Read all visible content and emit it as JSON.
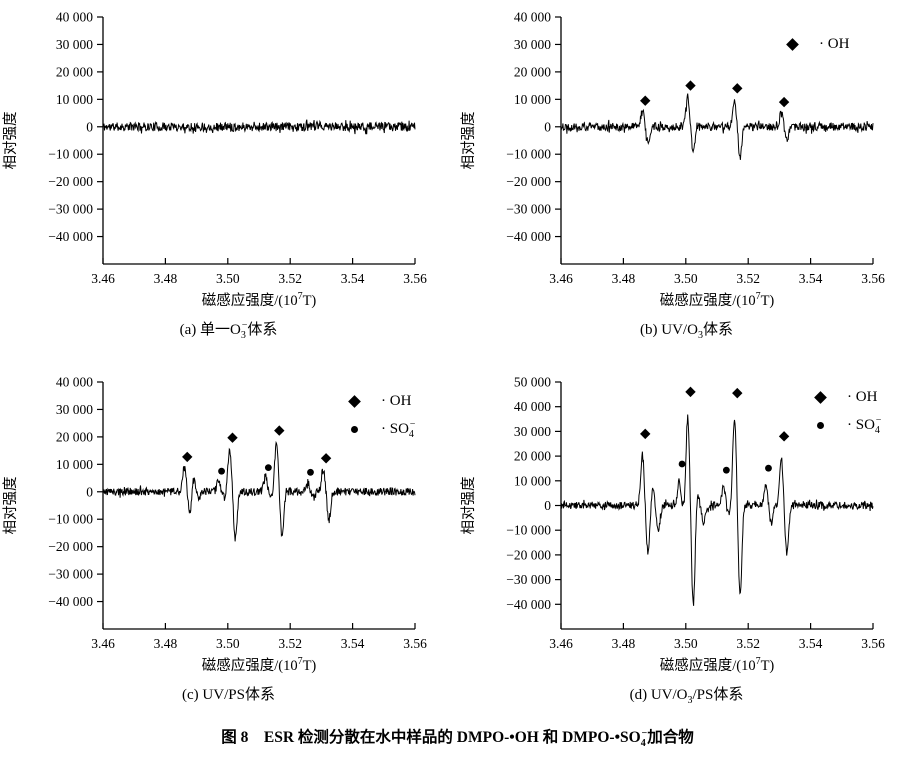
{
  "figure": {
    "caption": {
      "pre": "图 8　ESR 检测分散在水中样品的 DMPO-•OH 和 DMPO-•SO",
      "sub": "4",
      "sup": "−",
      "post": "加合物"
    }
  },
  "chart_data": [
    {
      "id": "a",
      "type": "line",
      "caption": {
        "pre": "(a) 单一O",
        "sub": "3",
        "sup": "−",
        "post": "体系"
      },
      "xlabel": {
        "pre": "磁感应强度/(10",
        "sup": "7",
        "post": "T)"
      },
      "ylabel": "相对强度",
      "xlim": [
        3.46,
        3.56
      ],
      "xticks": [
        "3.46",
        "3.48",
        "3.50",
        "3.52",
        "3.54",
        "3.56"
      ],
      "ylim": [
        -50000,
        40000
      ],
      "yticks": [
        {
          "v": 40000,
          "label": "40 000"
        },
        {
          "v": 30000,
          "label": "30 000"
        },
        {
          "v": 20000,
          "label": "20 000"
        },
        {
          "v": 10000,
          "label": "10 000"
        },
        {
          "v": 0,
          "label": "0"
        },
        {
          "v": -10000,
          "label": "−10 000"
        },
        {
          "v": -20000,
          "label": "−20 000"
        },
        {
          "v": -30000,
          "label": "−30 000"
        },
        {
          "v": -40000,
          "label": "−40 000"
        }
      ],
      "noise_amplitude": 1600,
      "seed": 11,
      "peaks": [],
      "legend": []
    },
    {
      "id": "b",
      "type": "line",
      "caption": {
        "pre": "(b) UV/O",
        "sub": "3",
        "post": "体系"
      },
      "xlabel": {
        "pre": "磁感应强度/(10",
        "sup": "7",
        "post": "T)"
      },
      "ylabel": "相对强度",
      "xlim": [
        3.46,
        3.56
      ],
      "xticks": [
        "3.46",
        "3.48",
        "3.50",
        "3.52",
        "3.54",
        "3.56"
      ],
      "ylim": [
        -50000,
        40000
      ],
      "yticks": [
        {
          "v": 40000,
          "label": "40 000"
        },
        {
          "v": 30000,
          "label": "30 000"
        },
        {
          "v": 20000,
          "label": "20 000"
        },
        {
          "v": 10000,
          "label": "10 000"
        },
        {
          "v": 0,
          "label": "0"
        },
        {
          "v": -10000,
          "label": "−10 000"
        },
        {
          "v": -20000,
          "label": "−20 000"
        },
        {
          "v": -30000,
          "label": "−30 000"
        },
        {
          "v": -40000,
          "label": "−40 000"
        }
      ],
      "noise_amplitude": 1500,
      "seed": 22,
      "peaks": [
        {
          "x": 3.487,
          "pos": 5500,
          "neg": 5200,
          "marker": "diamond",
          "marker_y": 9500
        },
        {
          "x": 3.5015,
          "pos": 11000,
          "neg": 9200,
          "marker": "diamond",
          "marker_y": 15000
        },
        {
          "x": 3.5165,
          "pos": 10200,
          "neg": 11000,
          "marker": "diamond",
          "marker_y": 14000
        },
        {
          "x": 3.5315,
          "pos": 5000,
          "neg": 5200,
          "marker": "diamond",
          "marker_y": 9000
        }
      ],
      "legend": [
        {
          "marker": "diamond",
          "pre": "· OH",
          "sub": "",
          "sup": ""
        }
      ]
    },
    {
      "id": "c",
      "type": "line",
      "caption": {
        "pre": "(c) UV/PS体系"
      },
      "xlabel": {
        "pre": "磁感应强度/(10",
        "sup": "7",
        "post": "T)"
      },
      "ylabel": "相对强度",
      "xlim": [
        3.46,
        3.56
      ],
      "xticks": [
        "3.46",
        "3.48",
        "3.50",
        "3.52",
        "3.54",
        "3.56"
      ],
      "ylim": [
        -50000,
        40000
      ],
      "yticks": [
        {
          "v": 40000,
          "label": "40 000"
        },
        {
          "v": 30000,
          "label": "30 000"
        },
        {
          "v": 20000,
          "label": "20 000"
        },
        {
          "v": 10000,
          "label": "10 000"
        },
        {
          "v": 0,
          "label": "0"
        },
        {
          "v": -10000,
          "label": "−10 000"
        },
        {
          "v": -20000,
          "label": "−20 000"
        },
        {
          "v": -30000,
          "label": "−30 000"
        },
        {
          "v": -40000,
          "label": "−40 000"
        }
      ],
      "noise_amplitude": 1400,
      "seed": 33,
      "peaks": [
        {
          "x": 3.487,
          "pos": 9500,
          "neg": 8500,
          "marker": "diamond",
          "marker_y": 12700
        },
        {
          "x": 3.4898,
          "pos": 5200,
          "neg": 2600
        },
        {
          "x": 3.498,
          "pos": 4200,
          "neg": 2200,
          "marker": "circle",
          "marker_y": 7500
        },
        {
          "x": 3.5015,
          "pos": 16000,
          "neg": 17500,
          "marker": "diamond",
          "marker_y": 19700
        },
        {
          "x": 3.513,
          "pos": 5200,
          "neg": 2400,
          "marker": "circle",
          "marker_y": 8800
        },
        {
          "x": 3.5165,
          "pos": 18500,
          "neg": 16500,
          "marker": "diamond",
          "marker_y": 22300
        },
        {
          "x": 3.5265,
          "pos": 3600,
          "neg": 2200,
          "marker": "circle",
          "marker_y": 7100
        },
        {
          "x": 3.5315,
          "pos": 8000,
          "neg": 10200,
          "marker": "diamond",
          "marker_y": 12200
        }
      ],
      "legend": [
        {
          "marker": "diamond",
          "pre": "· OH",
          "sub": "",
          "sup": ""
        },
        {
          "marker": "circle",
          "pre": "· SO",
          "sub": "4",
          "sup": "−"
        }
      ]
    },
    {
      "id": "d",
      "type": "line",
      "caption": {
        "pre": "(d) UV/O",
        "sub": "3",
        "post": "/PS体系"
      },
      "xlabel": {
        "pre": "磁感应强度/(10",
        "sup": "7",
        "post": "T)"
      },
      "ylabel": "相对强度",
      "xlim": [
        3.46,
        3.56
      ],
      "xticks": [
        "3.46",
        "3.48",
        "3.50",
        "3.52",
        "3.54",
        "3.56"
      ],
      "ylim": [
        -50000,
        50000
      ],
      "yticks": [
        {
          "v": 50000,
          "label": "50 000"
        },
        {
          "v": 40000,
          "label": "40 000"
        },
        {
          "v": 30000,
          "label": "30 000"
        },
        {
          "v": 20000,
          "label": "20 000"
        },
        {
          "v": 10000,
          "label": "10 000"
        },
        {
          "v": 0,
          "label": "0"
        },
        {
          "v": -10000,
          "label": "−10 000"
        },
        {
          "v": -20000,
          "label": "−20 000"
        },
        {
          "v": -30000,
          "label": "−30 000"
        },
        {
          "v": -40000,
          "label": "−40 000"
        }
      ],
      "noise_amplitude": 1500,
      "seed": 44,
      "peaks": [
        {
          "x": 3.487,
          "pos": 20500,
          "neg": 19700,
          "marker": "diamond",
          "marker_y": 29000
        },
        {
          "x": 3.4903,
          "pos": 6800,
          "neg": 9800
        },
        {
          "x": 3.4988,
          "pos": 9800,
          "neg": 3200,
          "marker": "circle",
          "marker_y": 16800
        },
        {
          "x": 3.5015,
          "pos": 37000,
          "neg": 40500,
          "marker": "diamond",
          "marker_y": 46000
        },
        {
          "x": 3.5048,
          "pos": 4800,
          "neg": 7200
        },
        {
          "x": 3.513,
          "pos": 7800,
          "neg": 4200,
          "marker": "circle",
          "marker_y": 14300
        },
        {
          "x": 3.5165,
          "pos": 36000,
          "neg": 35800,
          "marker": "diamond",
          "marker_y": 45500
        },
        {
          "x": 3.5265,
          "pos": 8600,
          "neg": 7200,
          "marker": "circle",
          "marker_y": 15100
        },
        {
          "x": 3.5315,
          "pos": 19500,
          "neg": 20200,
          "marker": "diamond",
          "marker_y": 28000
        }
      ],
      "legend": [
        {
          "marker": "diamond",
          "pre": "· OH",
          "sub": "",
          "sup": ""
        },
        {
          "marker": "circle",
          "pre": "· SO",
          "sub": "4",
          "sup": "−"
        }
      ]
    }
  ]
}
